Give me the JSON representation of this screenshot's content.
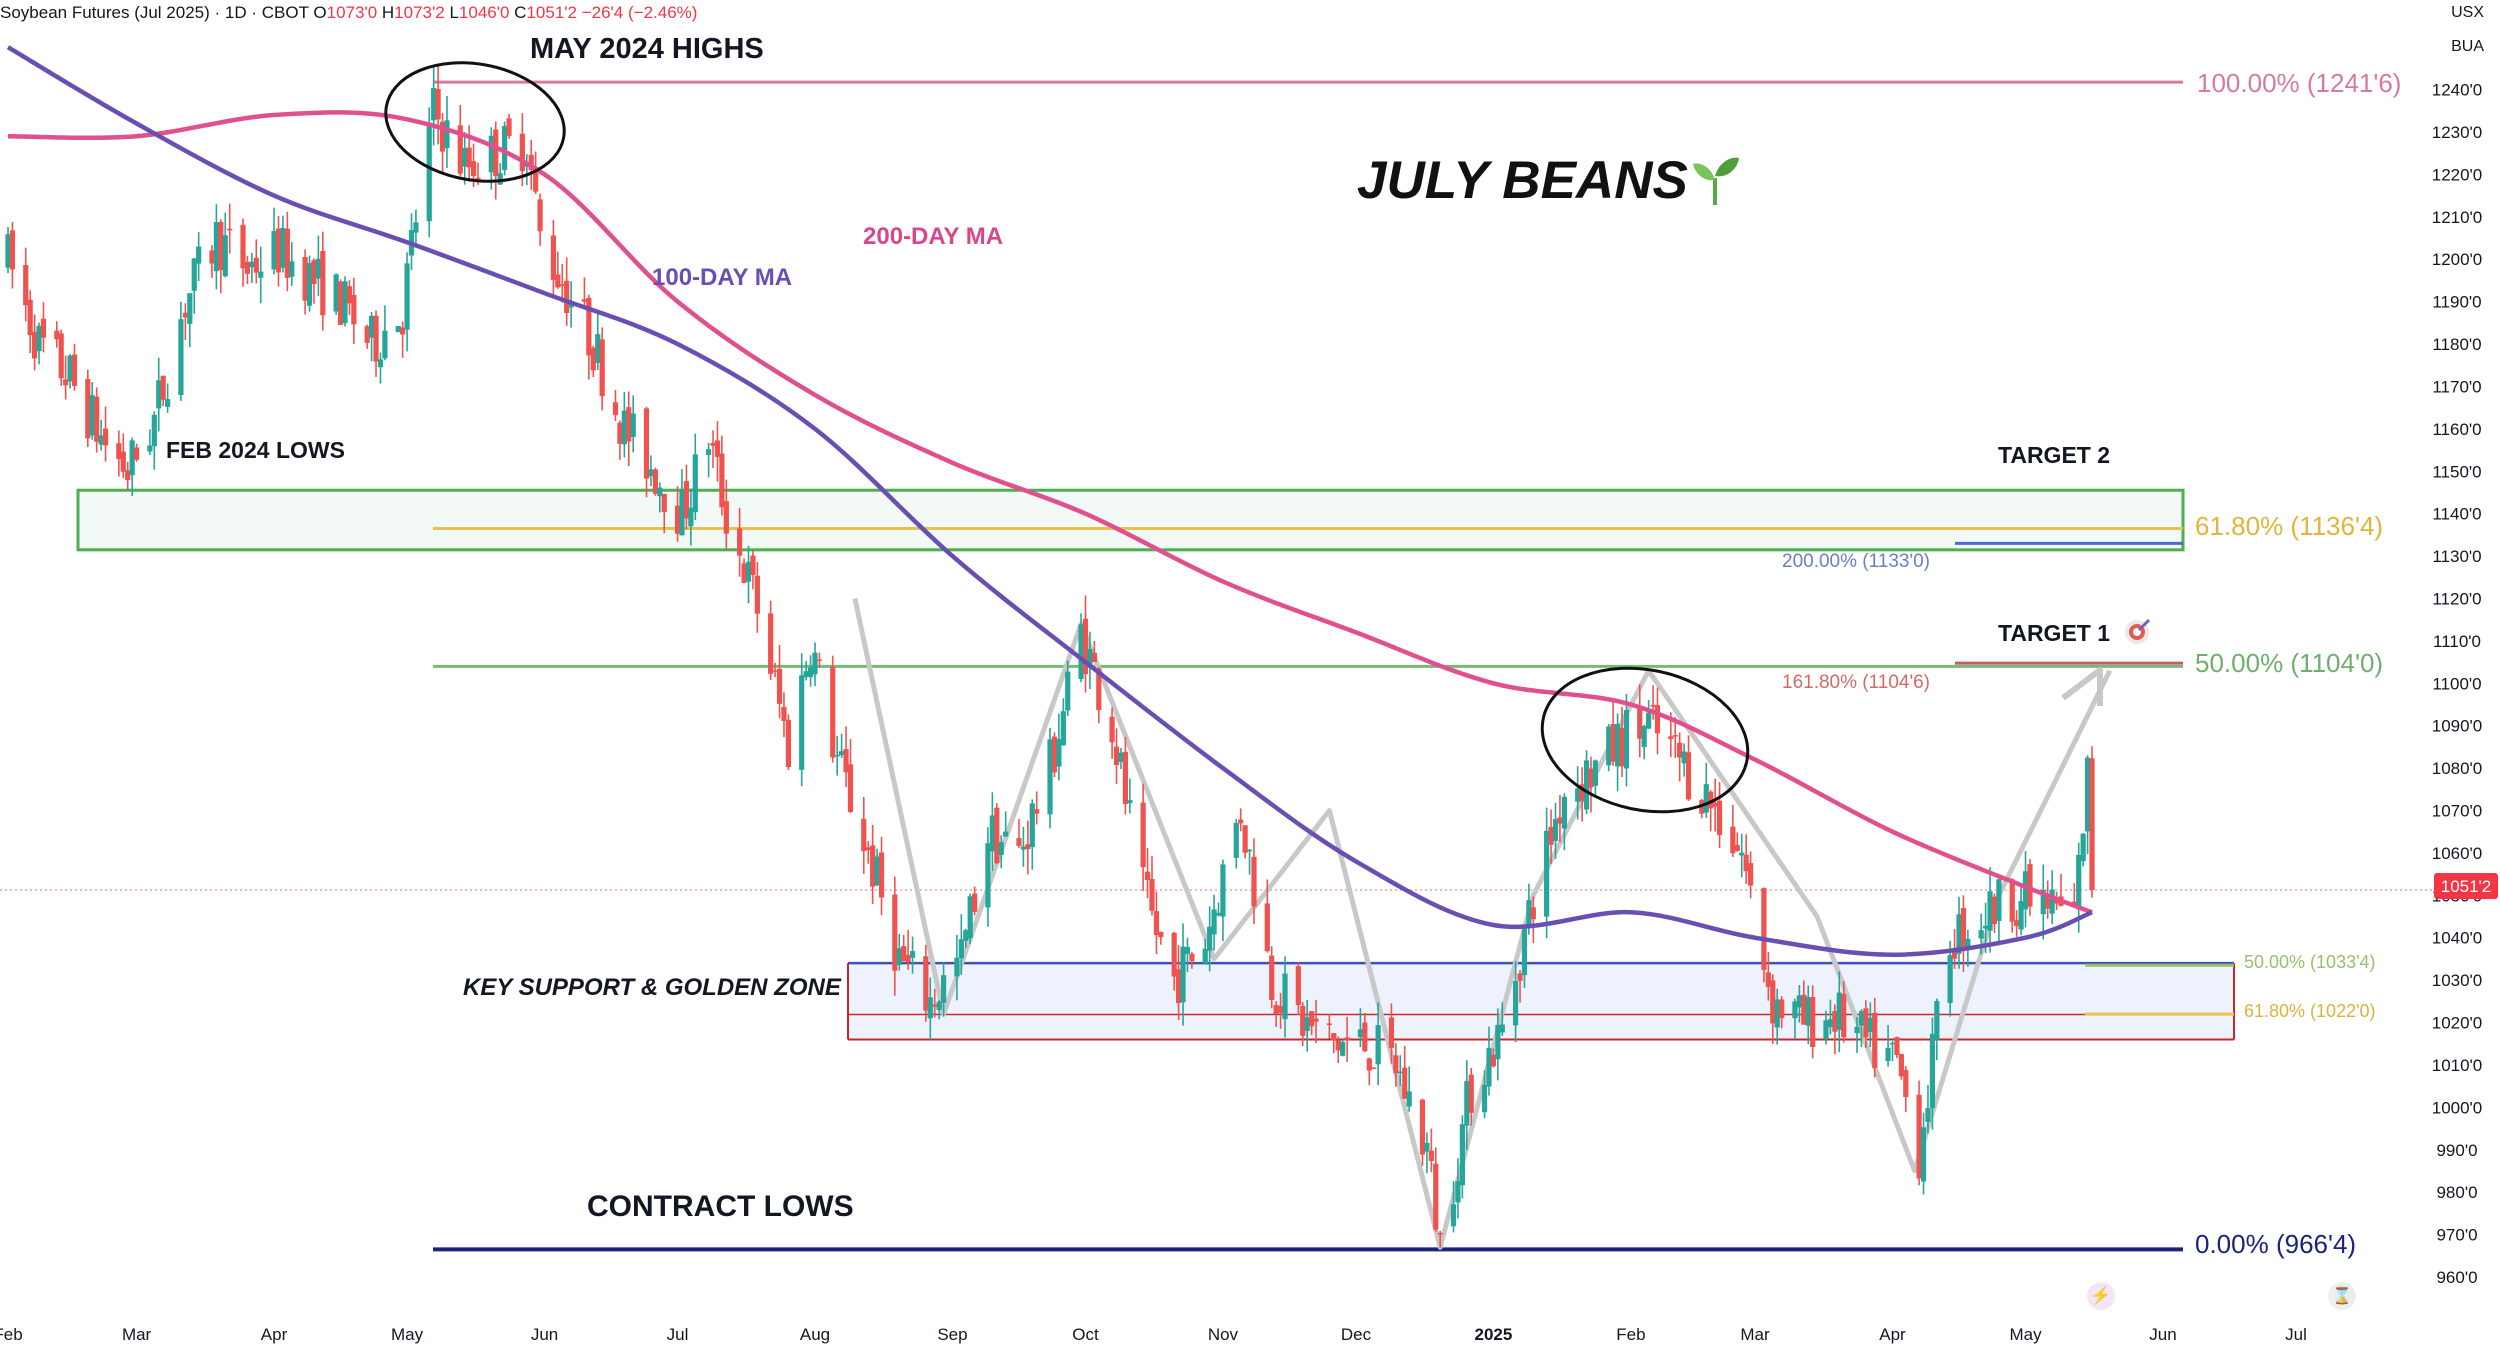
{
  "header": {
    "symbol": "Soybean Futures (Jul 2025) · 1D · CBOT",
    "open_label": "O",
    "open": "1073'0",
    "high_label": "H",
    "high": "1073'2",
    "low_label": "L",
    "low": "1046'0",
    "close_label": "C",
    "close": "1051'2",
    "change": "−26'4 (−2.46%)"
  },
  "currency": "USX",
  "unit": "BUA",
  "colors": {
    "up_candle": "#26a69a",
    "down_candle": "#ef5350",
    "ma200": "#e0508f",
    "ma100": "#6a4fb3",
    "fib_100": "#d67aa2",
    "fib_618": "#e8c24a",
    "fib_50": "#7ab87a",
    "contract_low": "#1a237e",
    "support_zone_border": "#3f51b5",
    "support_zone_lower": "#c62828",
    "feb_lows_zone": "#4caf50",
    "zigzag": "#c8c8c8",
    "price_tag": "#f23645"
  },
  "annotations": {
    "may_highs": "MAY 2024 HIGHS",
    "title": "JULY BEANS",
    "ma200_label": "200-DAY MA",
    "ma100_label": "100-DAY MA",
    "feb_lows": "FEB 2024 LOWS",
    "target2": "TARGET 2",
    "target1": "TARGET 1",
    "key_support": "KEY SUPPORT & GOLDEN ZONE",
    "contract_lows": "CONTRACT LOWS"
  },
  "fib_labels": {
    "fib100": "100.00% (1241'6)",
    "fib618": "61.80% (1136'4)",
    "ext200": "200.00% (1133'0)",
    "fib50": "50.00% (1104'0)",
    "ext1618": "161.80% (1104'6)",
    "fib0": "0.00% (966'4)",
    "small50": "50.00% (1033'4)",
    "small618": "61.80% (1022'0)"
  },
  "last_price_tag": "1051'2",
  "chart_data": {
    "type": "candlestick",
    "title": "Soybean Futures (Jul 2025) · 1D · CBOT",
    "ylim": [
      953,
      1252
    ],
    "y_ticks": [
      960,
      970,
      980,
      990,
      1000,
      1010,
      1020,
      1030,
      1040,
      1050,
      1060,
      1070,
      1080,
      1090,
      1100,
      1110,
      1120,
      1130,
      1140,
      1150,
      1160,
      1170,
      1180,
      1190,
      1200,
      1210,
      1220,
      1230,
      1240
    ],
    "y_tick_labels": [
      "960'0",
      "970'0",
      "980'0",
      "990'0",
      "1000'0",
      "1010'0",
      "1020'0",
      "1030'0",
      "1040'0",
      "1050'0",
      "1060'0",
      "1070'0",
      "1080'0",
      "1090'0",
      "1100'0",
      "1110'0",
      "1120'0",
      "1130'0",
      "1140'0",
      "1150'0",
      "1160'0",
      "1170'0",
      "1180'0",
      "1190'0",
      "1200'0",
      "1210'0",
      "1220'0",
      "1230'0",
      "1240'0"
    ],
    "x_ticks": [
      "Feb",
      "Mar",
      "Apr",
      "May",
      "Jun",
      "Jul",
      "Aug",
      "Sep",
      "Oct",
      "Nov",
      "Dec",
      "2025",
      "Feb",
      "Mar",
      "Apr",
      "May",
      "Jun",
      "Jul"
    ],
    "x_tick_dates": [
      "2024-02-01",
      "2024-03-01",
      "2024-04-01",
      "2024-05-01",
      "2024-06-01",
      "2024-07-01",
      "2024-08-01",
      "2024-09-01",
      "2024-10-01",
      "2024-11-01",
      "2024-12-01",
      "2025-01-01",
      "2025-02-01",
      "2025-03-01",
      "2025-04-01",
      "2025-05-01",
      "2025-06-01",
      "2025-07-01"
    ],
    "price_path": [
      [
        "2024-02-01",
        1200
      ],
      [
        "2024-02-08",
        1180
      ],
      [
        "2024-02-15",
        1172
      ],
      [
        "2024-02-22",
        1158
      ],
      [
        "2024-02-28",
        1150
      ],
      [
        "2024-03-05",
        1162
      ],
      [
        "2024-03-12",
        1190
      ],
      [
        "2024-03-19",
        1205
      ],
      [
        "2024-03-26",
        1198
      ],
      [
        "2024-04-02",
        1202
      ],
      [
        "2024-04-09",
        1196
      ],
      [
        "2024-04-16",
        1190
      ],
      [
        "2024-04-23",
        1180
      ],
      [
        "2024-04-30",
        1188
      ],
      [
        "2024-05-03",
        1210
      ],
      [
        "2024-05-07",
        1235
      ],
      [
        "2024-05-14",
        1222
      ],
      [
        "2024-05-21",
        1225
      ],
      [
        "2024-05-28",
        1228
      ],
      [
        "2024-05-31",
        1205
      ],
      [
        "2024-06-05",
        1195
      ],
      [
        "2024-06-12",
        1180
      ],
      [
        "2024-06-19",
        1160
      ],
      [
        "2024-06-26",
        1150
      ],
      [
        "2024-07-02",
        1140
      ],
      [
        "2024-07-08",
        1158
      ],
      [
        "2024-07-12",
        1140
      ],
      [
        "2024-07-19",
        1118
      ],
      [
        "2024-07-26",
        1085
      ],
      [
        "2024-07-31",
        1110
      ],
      [
        "2024-08-06",
        1082
      ],
      [
        "2024-08-13",
        1060
      ],
      [
        "2024-08-20",
        1035
      ],
      [
        "2024-08-27",
        1025
      ],
      [
        "2024-09-03",
        1035
      ],
      [
        "2024-09-09",
        1065
      ],
      [
        "2024-09-16",
        1060
      ],
      [
        "2024-09-23",
        1080
      ],
      [
        "2024-09-30",
        1112
      ],
      [
        "2024-10-07",
        1090
      ],
      [
        "2024-10-14",
        1050
      ],
      [
        "2024-10-21",
        1030
      ],
      [
        "2024-10-28",
        1040
      ],
      [
        "2024-11-05",
        1070
      ],
      [
        "2024-11-12",
        1030
      ],
      [
        "2024-11-19",
        1020
      ],
      [
        "2024-11-26",
        1015
      ],
      [
        "2024-12-03",
        1015
      ],
      [
        "2024-12-10",
        1010
      ],
      [
        "2024-12-17",
        990
      ],
      [
        "2024-12-20",
        968
      ],
      [
        "2024-12-27",
        1005
      ],
      [
        "2025-01-03",
        1018
      ],
      [
        "2025-01-10",
        1050
      ],
      [
        "2025-01-17",
        1075
      ],
      [
        "2025-01-24",
        1080
      ],
      [
        "2025-01-31",
        1088
      ],
      [
        "2025-02-05",
        1090
      ],
      [
        "2025-02-12",
        1082
      ],
      [
        "2025-02-19",
        1072
      ],
      [
        "2025-02-26",
        1060
      ],
      [
        "2025-03-05",
        1025
      ],
      [
        "2025-03-12",
        1020
      ],
      [
        "2025-03-19",
        1022
      ],
      [
        "2025-03-26",
        1015
      ],
      [
        "2025-04-02",
        1010
      ],
      [
        "2025-04-07",
        990
      ],
      [
        "2025-04-14",
        1040
      ],
      [
        "2025-04-21",
        1045
      ],
      [
        "2025-04-28",
        1050
      ],
      [
        "2025-05-05",
        1048
      ],
      [
        "2025-05-12",
        1045
      ],
      [
        "2025-05-15",
        1078
      ],
      [
        "2025-05-16",
        1051
      ]
    ],
    "series": [
      {
        "name": "200-DAY MA",
        "points": [
          [
            "2024-02-01",
            1229
          ],
          [
            "2024-03-01",
            1229
          ],
          [
            "2024-04-01",
            1234
          ],
          [
            "2024-05-01",
            1233
          ],
          [
            "2024-06-01",
            1220
          ],
          [
            "2024-07-01",
            1190
          ],
          [
            "2024-08-01",
            1168
          ],
          [
            "2024-09-01",
            1152
          ],
          [
            "2024-10-01",
            1140
          ],
          [
            "2024-11-01",
            1124
          ],
          [
            "2024-12-01",
            1112
          ],
          [
            "2025-01-01",
            1100
          ],
          [
            "2025-02-01",
            1095
          ],
          [
            "2025-03-01",
            1082
          ],
          [
            "2025-04-01",
            1065
          ],
          [
            "2025-05-01",
            1052
          ],
          [
            "2025-05-16",
            1046
          ]
        ]
      },
      {
        "name": "100-DAY MA",
        "points": [
          [
            "2024-02-01",
            1250
          ],
          [
            "2024-03-01",
            1232
          ],
          [
            "2024-04-01",
            1215
          ],
          [
            "2024-05-01",
            1204
          ],
          [
            "2024-06-01",
            1192
          ],
          [
            "2024-07-01",
            1180
          ],
          [
            "2024-08-01",
            1160
          ],
          [
            "2024-09-01",
            1130
          ],
          [
            "2024-10-01",
            1105
          ],
          [
            "2024-11-01",
            1080
          ],
          [
            "2024-12-01",
            1058
          ],
          [
            "2025-01-01",
            1043
          ],
          [
            "2025-02-01",
            1046
          ],
          [
            "2025-03-01",
            1040
          ],
          [
            "2025-04-01",
            1036
          ],
          [
            "2025-05-01",
            1040
          ],
          [
            "2025-05-16",
            1046
          ]
        ]
      }
    ],
    "levels": [
      {
        "label": "100.00% (1241'6)",
        "value": 1241.75
      },
      {
        "label": "61.80% (1136'4)",
        "value": 1136.5
      },
      {
        "label": "200.00% (1133'0)",
        "value": 1133.0
      },
      {
        "label": "50.00% (1104'0)",
        "value": 1104.0
      },
      {
        "label": "161.80% (1104'6)",
        "value": 1104.75
      },
      {
        "label": "0.00% (966'4)",
        "value": 966.5
      },
      {
        "label": "50.00% (1033'4)",
        "value": 1033.5
      },
      {
        "label": "61.80% (1022'0)",
        "value": 1022.0
      }
    ],
    "zones": [
      {
        "label": "FEB 2024 LOWS",
        "from": 1131,
        "to": 1146,
        "start": "2024-02-01",
        "end": "2025-06-15"
      },
      {
        "label": "KEY SUPPORT & GOLDEN ZONE",
        "from": 1016,
        "to": 1034,
        "start": "2024-08-10",
        "end": "2025-06-15"
      }
    ],
    "zigzag": [
      [
        "2024-08-10",
        1120
      ],
      [
        "2024-08-30",
        1022
      ],
      [
        "2024-09-30",
        1114
      ],
      [
        "2024-10-30",
        1035
      ],
      [
        "2024-11-25",
        1070
      ],
      [
        "2024-12-20",
        967
      ],
      [
        "2025-01-10",
        1050
      ],
      [
        "2025-02-05",
        1103
      ],
      [
        "2025-03-15",
        1045
      ],
      [
        "2025-04-06",
        985
      ],
      [
        "2025-04-25",
        1050
      ],
      [
        "2025-05-20",
        1103
      ]
    ],
    "last_close": 1051.25
  }
}
